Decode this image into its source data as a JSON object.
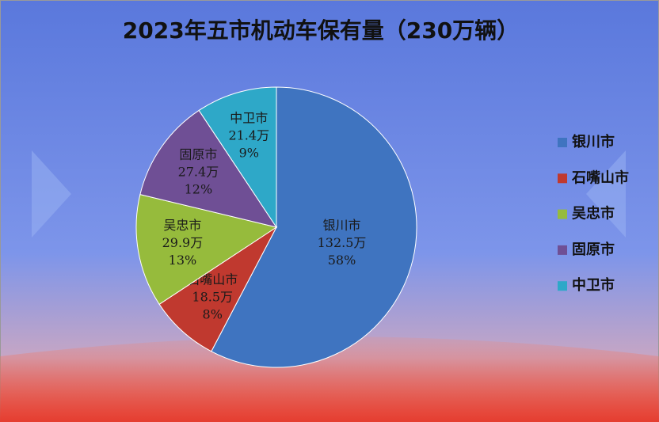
{
  "chart_data": {
    "type": "pie",
    "title": "2023年五市机动车保有量（230万辆）",
    "categories": [
      "银川市",
      "石嘴山市",
      "吴忠市",
      "固原市",
      "中卫市"
    ],
    "values": [
      132.5,
      18.5,
      29.9,
      27.4,
      21.4
    ],
    "value_labels": [
      "132.5万",
      "18.5万",
      "29.9万",
      "27.4万",
      "21.4万"
    ],
    "percent_labels": [
      "58%",
      "8%",
      "13%",
      "12%",
      "9%"
    ],
    "colors": [
      "#3f74c0",
      "#c0392f",
      "#96bb3c",
      "#6f4f95",
      "#2ea8c8"
    ],
    "legend": "right"
  }
}
